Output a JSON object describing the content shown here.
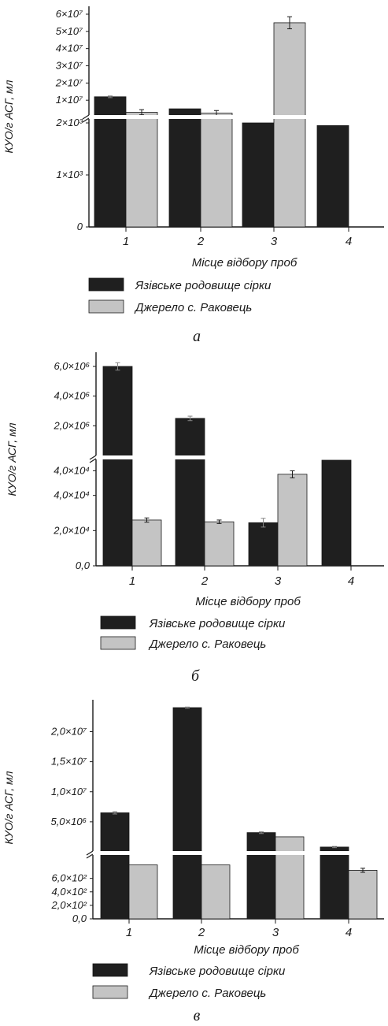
{
  "chart_data": [
    {
      "type": "bar",
      "panel_label": "а",
      "categories": [
        "1",
        "2",
        "3",
        "4"
      ],
      "xlabel": "Місце відбору проб",
      "ylabel": "КУО/г АСГ, мл",
      "broken_axis": true,
      "lower_ticks": [
        "0",
        "1×10³",
        "2×10³"
      ],
      "upper_ticks": [
        "1×10⁷",
        "2×10⁷",
        "3×10⁷",
        "4×10⁷",
        "5×10⁷",
        "6×10⁷"
      ],
      "series": [
        {
          "name": "Язівське родовище сірки",
          "color": "#1f1f1f",
          "values": [
            12000000,
            5000000,
            2000,
            1950
          ],
          "errors": [
            500000,
            0,
            0,
            0
          ]
        },
        {
          "name": "Джерело с. Раковець",
          "color": "#c4c4c4",
          "values": [
            3000000,
            2500000,
            55000000,
            null
          ],
          "errors": [
            1500000,
            1500000,
            3500000,
            0
          ]
        }
      ]
    },
    {
      "type": "bar",
      "panel_label": "б",
      "categories": [
        "1",
        "2",
        "3",
        "4"
      ],
      "xlabel": "Місце відбору проб",
      "ylabel": "КУО/г АСГ, мл",
      "broken_axis": true,
      "lower_ticks": [
        "0,0",
        "2,0×10⁴",
        "4,0×10⁴",
        "4,0×10⁴"
      ],
      "upper_ticks": [
        "2,0×10⁶",
        "4,0×10⁶",
        "6,0×10⁶"
      ],
      "series": [
        {
          "name": "Язівське родовище сірки",
          "color": "#1f1f1f",
          "values": [
            6000000,
            2500000,
            24500,
            60000
          ],
          "errors": [
            250000,
            150000,
            2500,
            0
          ]
        },
        {
          "name": "Джерело с. Раковець",
          "color": "#c4c4c4",
          "values": [
            26000,
            25000,
            52000,
            null
          ],
          "errors": [
            1200,
            1000,
            2000,
            0
          ]
        }
      ]
    },
    {
      "type": "bar",
      "panel_label": "в",
      "categories": [
        "1",
        "2",
        "3",
        "4"
      ],
      "xlabel": "Місце відбору проб",
      "ylabel": "КУО/г АСГ, мл",
      "broken_axis": true,
      "lower_ticks": [
        "0,0",
        "2,0×10²",
        "4,0×10²",
        "6,0×10²"
      ],
      "upper_ticks": [
        "5,0×10⁶",
        "1,0×10⁷",
        "1,5×10⁷",
        "2,0×10⁷"
      ],
      "series": [
        {
          "name": "Язівське родовище сірки",
          "color": "#1f1f1f",
          "values": [
            6500000,
            24000000,
            3200000,
            800000
          ],
          "errors": [
            200000,
            100000,
            150000,
            100000
          ]
        },
        {
          "name": "Джерело с. Раковець",
          "color": "#c4c4c4",
          "values": [
            800,
            800,
            2500000,
            720
          ],
          "errors": [
            0,
            0,
            0,
            30
          ]
        }
      ]
    }
  ]
}
